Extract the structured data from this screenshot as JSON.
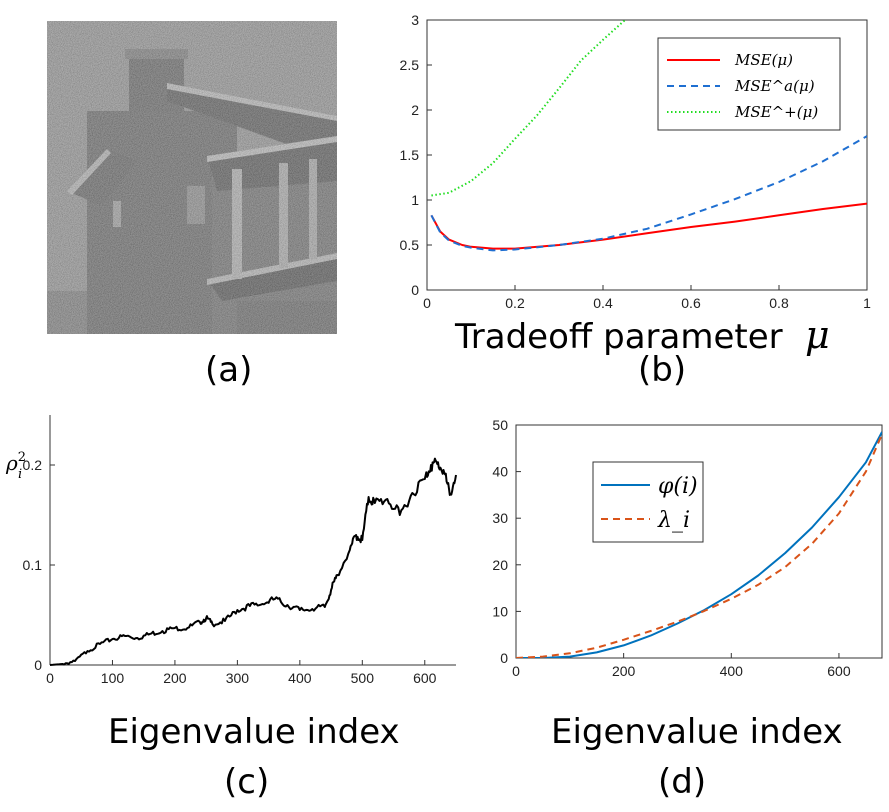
{
  "labels": {
    "a": "(a)",
    "b": "(b)",
    "c": "(c)",
    "d": "(d)"
  },
  "house_image": {
    "description": "noisy grayscale photo of a house with chimney"
  },
  "chart_data": [
    {
      "id": "b",
      "type": "line",
      "xlabel": "Tradeoff parameter",
      "xlabel_symbol": "μ",
      "ylabel": "",
      "xlim": [
        0,
        1
      ],
      "ylim": [
        0,
        3
      ],
      "xticks": [
        "0",
        "0.2",
        "0.4",
        "0.6",
        "0.8",
        "1"
      ],
      "yticks": [
        "0",
        "0.5",
        "1",
        "1.5",
        "2",
        "2.5",
        "3"
      ],
      "legend_position": "top-right",
      "series": [
        {
          "name": "MSE(μ)",
          "color": "#ff0000",
          "style": "solid",
          "x": [
            0.01,
            0.03,
            0.05,
            0.08,
            0.1,
            0.15,
            0.2,
            0.3,
            0.4,
            0.5,
            0.6,
            0.7,
            0.8,
            0.9,
            1.0
          ],
          "y": [
            0.83,
            0.65,
            0.56,
            0.5,
            0.48,
            0.46,
            0.46,
            0.5,
            0.56,
            0.63,
            0.7,
            0.76,
            0.83,
            0.9,
            0.96
          ]
        },
        {
          "name": "MSE^a(μ)",
          "color": "#1f6fd1",
          "style": "dashed",
          "x": [
            0.01,
            0.03,
            0.05,
            0.08,
            0.1,
            0.15,
            0.2,
            0.3,
            0.4,
            0.5,
            0.6,
            0.7,
            0.8,
            0.9,
            1.0
          ],
          "y": [
            0.83,
            0.64,
            0.55,
            0.49,
            0.47,
            0.44,
            0.45,
            0.5,
            0.57,
            0.68,
            0.84,
            1.01,
            1.2,
            1.43,
            1.71
          ]
        },
        {
          "name": "MSE^+(μ)",
          "color": "#22dd22",
          "style": "dotted",
          "x": [
            0.01,
            0.05,
            0.1,
            0.15,
            0.2,
            0.25,
            0.3,
            0.35,
            0.4,
            0.45
          ],
          "y": [
            1.05,
            1.08,
            1.21,
            1.41,
            1.68,
            1.94,
            2.24,
            2.55,
            2.78,
            3.0
          ]
        }
      ]
    },
    {
      "id": "c",
      "type": "line",
      "xlabel": "Eigenvalue index",
      "ylabel": "ρ",
      "ylabel_sup": "2",
      "ylabel_sub": "i",
      "xlim": [
        0,
        650
      ],
      "ylim": [
        0,
        0.25
      ],
      "xticks": [
        "0",
        "100",
        "200",
        "300",
        "400",
        "500",
        "600"
      ],
      "yticks": [
        "0",
        "0.1",
        "0.2"
      ],
      "series": [
        {
          "name": "rho_i^2",
          "color": "#000000",
          "style": "solid",
          "x": [
            0,
            20,
            40,
            60,
            80,
            100,
            120,
            140,
            160,
            180,
            200,
            220,
            240,
            250,
            260,
            280,
            300,
            320,
            340,
            360,
            380,
            400,
            420,
            440,
            450,
            460,
            480,
            490,
            500,
            510,
            520,
            540,
            560,
            580,
            600,
            610,
            620,
            630,
            640,
            650
          ],
          "y": [
            0,
            0.001,
            0.004,
            0.014,
            0.021,
            0.026,
            0.029,
            0.027,
            0.031,
            0.034,
            0.037,
            0.037,
            0.043,
            0.047,
            0.041,
            0.044,
            0.055,
            0.059,
            0.061,
            0.066,
            0.06,
            0.055,
            0.056,
            0.058,
            0.075,
            0.09,
            0.115,
            0.13,
            0.125,
            0.168,
            0.162,
            0.166,
            0.15,
            0.172,
            0.186,
            0.2,
            0.201,
            0.195,
            0.17,
            0.19
          ]
        }
      ]
    },
    {
      "id": "d",
      "type": "line",
      "xlabel": "Eigenvalue index",
      "ylabel": "",
      "xlim": [
        0,
        680
      ],
      "ylim": [
        0,
        50
      ],
      "xticks": [
        "0",
        "200",
        "400",
        "600"
      ],
      "yticks": [
        "0",
        "10",
        "20",
        "30",
        "40",
        "50"
      ],
      "legend_position": "top-left",
      "series": [
        {
          "name": "φ(i)",
          "color": "#0072bd",
          "style": "solid",
          "x": [
            0,
            50,
            100,
            150,
            200,
            250,
            300,
            350,
            400,
            450,
            500,
            550,
            600,
            650,
            680
          ],
          "y": [
            0,
            0,
            0.3,
            1.2,
            2.7,
            4.8,
            7.4,
            10.3,
            13.7,
            17.7,
            22.5,
            28.0,
            34.5,
            42.0,
            48.5
          ]
        },
        {
          "name": "λ_i",
          "color": "#d95319",
          "style": "dashed",
          "x": [
            0,
            50,
            100,
            150,
            200,
            250,
            300,
            350,
            400,
            450,
            500,
            550,
            600,
            650,
            680
          ],
          "y": [
            0,
            0.3,
            1.0,
            2.2,
            3.9,
            5.8,
            7.8,
            10.1,
            12.7,
            15.7,
            19.5,
            24.5,
            31.0,
            40.0,
            48.0
          ]
        }
      ]
    }
  ]
}
